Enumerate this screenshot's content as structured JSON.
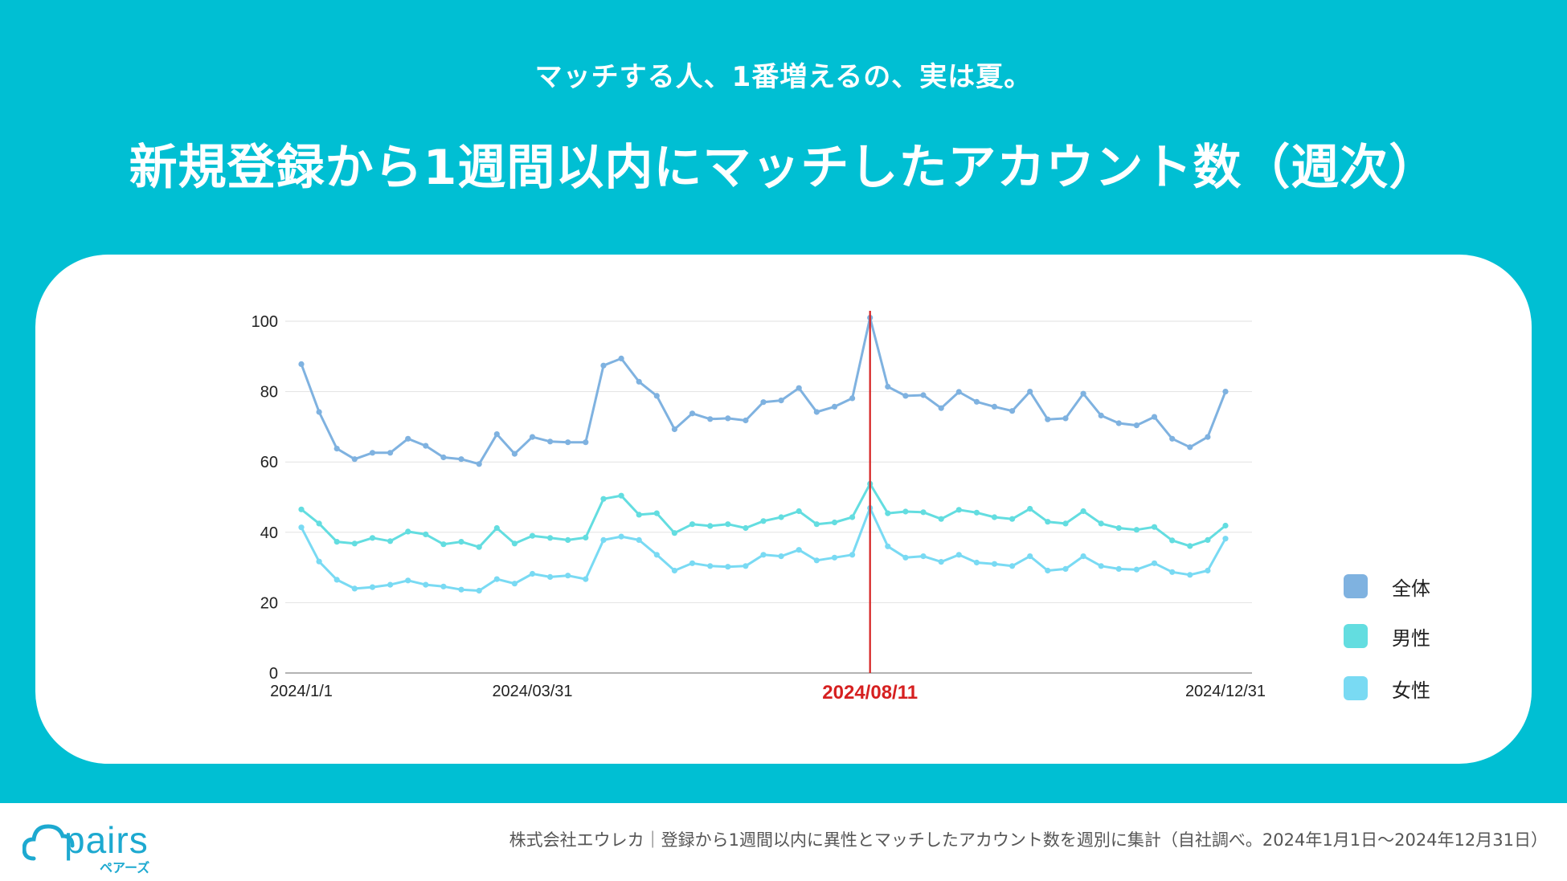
{
  "header": {
    "subtitle": "マッチする人、1番増えるの、実は夏。",
    "title": "新規登録から1週間以内にマッチしたアカウント数（週次）"
  },
  "footer": {
    "logo_text": "pairs",
    "logo_sub": "ペアーズ",
    "note": "株式会社エウレカ｜登録から1週間以内に異性とマッチしたアカウント数を週別に集計（自社調べ。2024年1月1日〜2024年12月31日）"
  },
  "colors": {
    "background": "#00BFD3",
    "all": "#7FB2E0",
    "male": "#63DDE0",
    "female": "#79DAF3",
    "highlight": "#D62020"
  },
  "chart_data": {
    "type": "line",
    "ylim": [
      0,
      100
    ],
    "yticks": [
      0,
      20,
      40,
      60,
      80,
      100
    ],
    "grid": true,
    "legend_position": "right",
    "x_labels": [
      {
        "index": 0,
        "label": "2024/1/1",
        "highlight": false
      },
      {
        "index": 13,
        "label": "2024/03/31",
        "highlight": false
      },
      {
        "index": 32,
        "label": "2024/08/11",
        "highlight": true
      },
      {
        "index": 52,
        "label": "2024/12/31",
        "highlight": false
      }
    ],
    "marker_index": 32,
    "series": [
      {
        "name": "全体",
        "color": "#7FB2E0",
        "values": [
          87.8,
          74.2,
          63.8,
          60.8,
          62.6,
          62.6,
          66.6,
          64.6,
          61.3,
          60.8,
          59.4,
          67.9,
          62.3,
          67.1,
          65.8,
          65.6,
          65.6,
          87.4,
          89.4,
          82.8,
          78.8,
          69.3,
          73.8,
          72.2,
          72.4,
          71.8,
          77.0,
          77.5,
          81.0,
          74.2,
          75.7,
          78.1,
          101.0,
          81.4,
          78.8,
          79.0,
          75.3,
          79.9,
          77.1,
          75.7,
          74.5,
          80.0,
          72.1,
          72.4,
          79.4,
          73.2,
          71.0,
          70.4,
          72.8,
          66.6,
          64.2,
          67.1,
          80.0
        ]
      },
      {
        "name": "男性",
        "color": "#63DDE0",
        "values": [
          46.5,
          42.5,
          37.3,
          36.8,
          38.4,
          37.5,
          40.2,
          39.4,
          36.6,
          37.3,
          35.8,
          41.2,
          36.8,
          39.0,
          38.4,
          37.8,
          38.5,
          49.5,
          50.4,
          45.0,
          45.4,
          39.8,
          42.3,
          41.8,
          42.3,
          41.2,
          43.2,
          44.3,
          46.0,
          42.3,
          42.8,
          44.3,
          53.8,
          45.4,
          45.9,
          45.7,
          43.8,
          46.4,
          45.6,
          44.3,
          43.8,
          46.7,
          43.0,
          42.5,
          46.0,
          42.5,
          41.2,
          40.7,
          41.5,
          37.7,
          36.1,
          37.8,
          41.9
        ]
      },
      {
        "name": "女性",
        "color": "#79DAF3",
        "values": [
          41.4,
          31.7,
          26.5,
          24.0,
          24.4,
          25.1,
          26.3,
          25.1,
          24.6,
          23.7,
          23.4,
          26.7,
          25.4,
          28.2,
          27.3,
          27.7,
          26.7,
          37.8,
          38.8,
          37.8,
          33.6,
          29.1,
          31.2,
          30.4,
          30.2,
          30.4,
          33.6,
          33.2,
          35.0,
          32.0,
          32.8,
          33.6,
          46.9,
          36.0,
          32.8,
          33.2,
          31.6,
          33.6,
          31.4,
          31.0,
          30.4,
          33.2,
          29.1,
          29.6,
          33.2,
          30.4,
          29.6,
          29.4,
          31.2,
          28.7,
          27.9,
          29.1,
          38.2
        ]
      }
    ]
  }
}
